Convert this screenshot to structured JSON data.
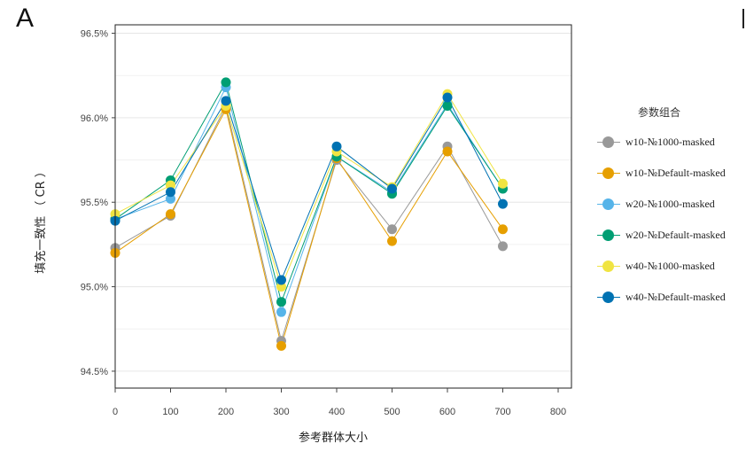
{
  "panel_label": "A",
  "chart_data": {
    "type": "line",
    "xlabel": "参考群体大小",
    "ylabel": "填充一致性 （ CR ）",
    "x": [
      0,
      100,
      200,
      300,
      400,
      500,
      600,
      700
    ],
    "xlim": [
      0,
      800
    ],
    "xticks": [
      0,
      100,
      200,
      300,
      400,
      500,
      600,
      700,
      800
    ],
    "xtick_labels": [
      "0",
      "100",
      "200",
      "300",
      "400",
      "500",
      "600",
      "700",
      "800"
    ],
    "ylim": [
      94.4,
      96.55
    ],
    "yticks": [
      94.5,
      95.0,
      95.5,
      96.0,
      96.5
    ],
    "ytick_labels": [
      "94.5%",
      "95.0%",
      "95.5%",
      "96.0%",
      "96.5%"
    ],
    "grid": true,
    "legend_title": "参数组合",
    "legend_position": "right",
    "series": [
      {
        "name": "w10-№1000-masked",
        "color": "#999999",
        "values": [
          95.23,
          95.42,
          96.07,
          94.68,
          95.75,
          95.34,
          95.83,
          95.24
        ]
      },
      {
        "name": "w10-№Default-masked",
        "color": "#E69F00",
        "values": [
          95.2,
          95.43,
          96.05,
          94.65,
          95.76,
          95.27,
          95.8,
          95.34
        ]
      },
      {
        "name": "w20-№1000-masked",
        "color": "#56B4E9",
        "values": [
          95.4,
          95.52,
          96.18,
          94.85,
          95.77,
          95.56,
          96.08,
          95.58
        ]
      },
      {
        "name": "w20-№Default-masked",
        "color": "#009E73",
        "values": [
          95.4,
          95.63,
          96.21,
          94.91,
          95.77,
          95.55,
          96.07,
          95.58
        ]
      },
      {
        "name": "w40-№1000-masked",
        "color": "#F0E442",
        "values": [
          95.43,
          95.6,
          96.07,
          95.0,
          95.8,
          95.59,
          96.14,
          95.61
        ]
      },
      {
        "name": "w40-№Default-masked",
        "color": "#0072B2",
        "values": [
          95.39,
          95.56,
          96.1,
          95.04,
          95.83,
          95.58,
          96.12,
          95.49
        ]
      }
    ]
  }
}
